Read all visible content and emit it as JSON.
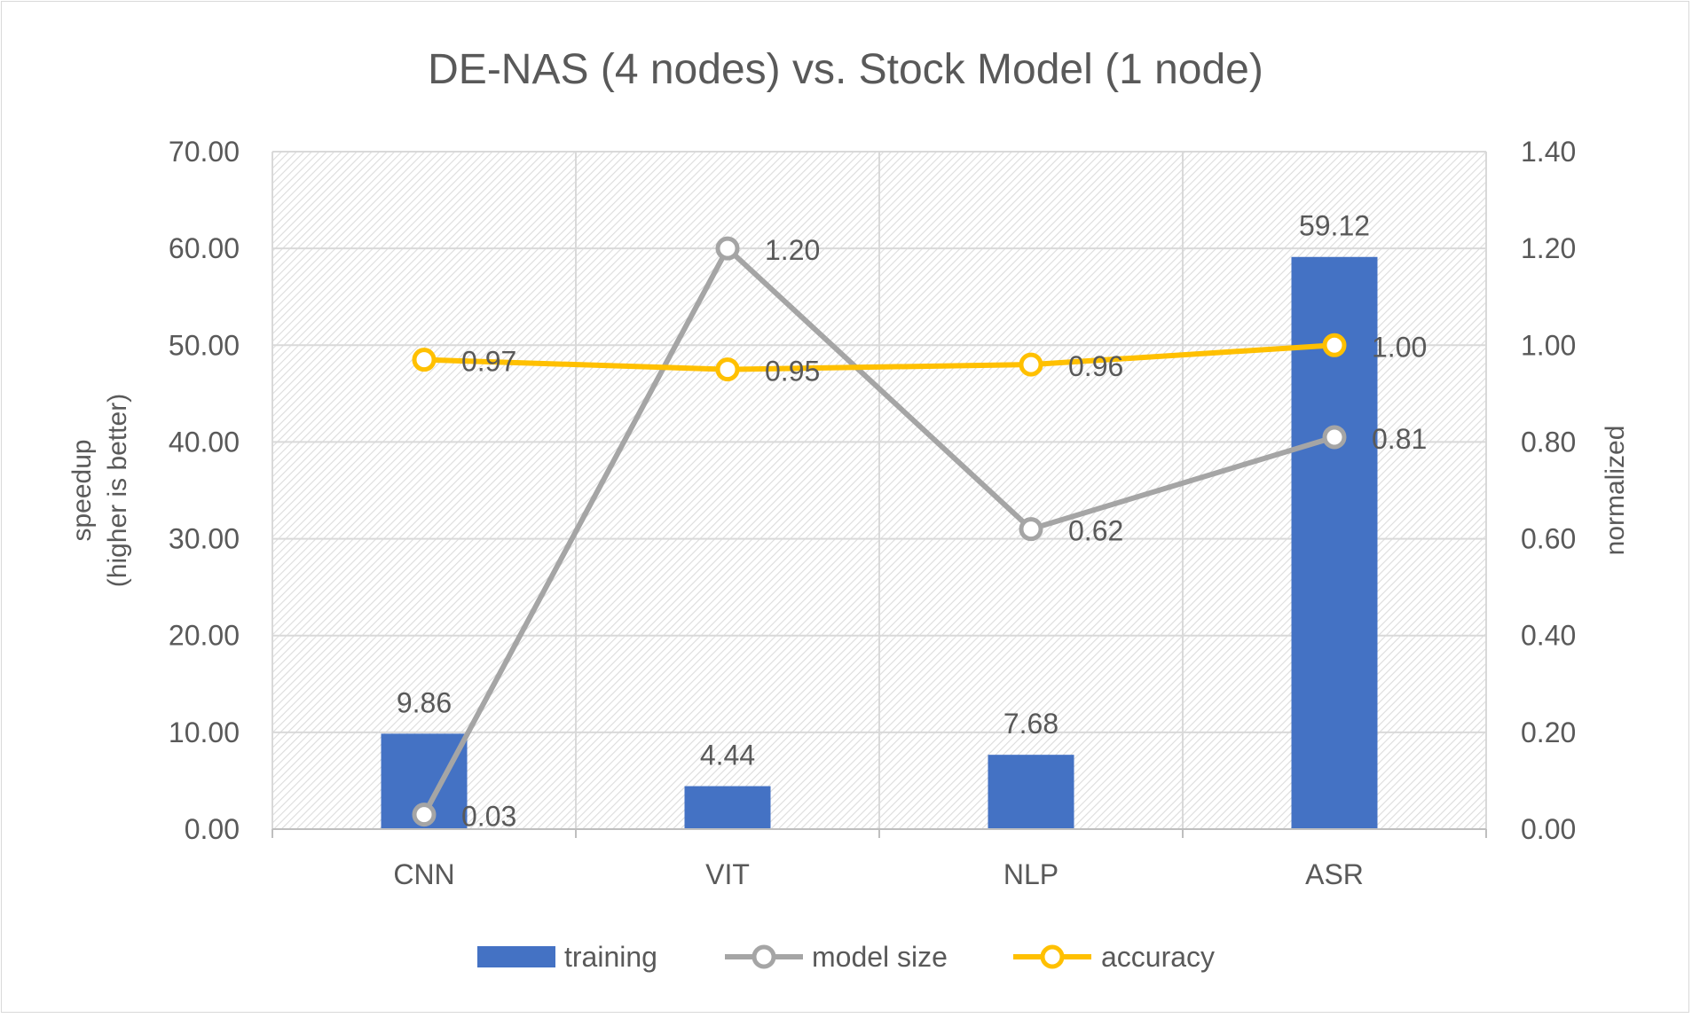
{
  "chart_data": {
    "type": "bar",
    "title": "DE-NAS (4 nodes) vs. Stock Model (1 node)",
    "categories": [
      "CNN",
      "VIT",
      "NLP",
      "ASR"
    ],
    "y_left": {
      "label_line1": "speedup",
      "label_line2": "(higher is better)",
      "ylim": [
        0,
        70
      ],
      "ticks": [
        0,
        10,
        20,
        30,
        40,
        50,
        60,
        70
      ],
      "tick_labels": [
        "0.00",
        "10.00",
        "20.00",
        "30.00",
        "40.00",
        "50.00",
        "60.00",
        "70.00"
      ]
    },
    "y_right": {
      "label": "normalized",
      "ylim": [
        0,
        1.4
      ],
      "ticks": [
        0,
        0.2,
        0.4,
        0.6,
        0.8,
        1.0,
        1.2,
        1.4
      ],
      "tick_labels": [
        "0.00",
        "0.20",
        "0.40",
        "0.60",
        "0.80",
        "1.00",
        "1.20",
        "1.40"
      ]
    },
    "series": [
      {
        "name": "training",
        "kind": "bar",
        "axis": "left",
        "color": "#4472c4",
        "values": [
          9.86,
          4.44,
          7.68,
          59.12
        ],
        "labels": [
          "9.86",
          "4.44",
          "7.68",
          "59.12"
        ]
      },
      {
        "name": "model size",
        "kind": "line",
        "axis": "right",
        "color": "#a5a5a5",
        "values": [
          0.03,
          1.2,
          0.62,
          0.81
        ],
        "labels": [
          "0.03",
          "1.20",
          "0.62",
          "0.81"
        ]
      },
      {
        "name": "accuracy",
        "kind": "line",
        "axis": "right",
        "color": "#ffc000",
        "values": [
          0.97,
          0.95,
          0.96,
          1.0
        ],
        "labels": [
          "0.97",
          "0.95",
          "0.96",
          "1.00"
        ]
      }
    ],
    "grid": true,
    "legend_position": "bottom"
  }
}
